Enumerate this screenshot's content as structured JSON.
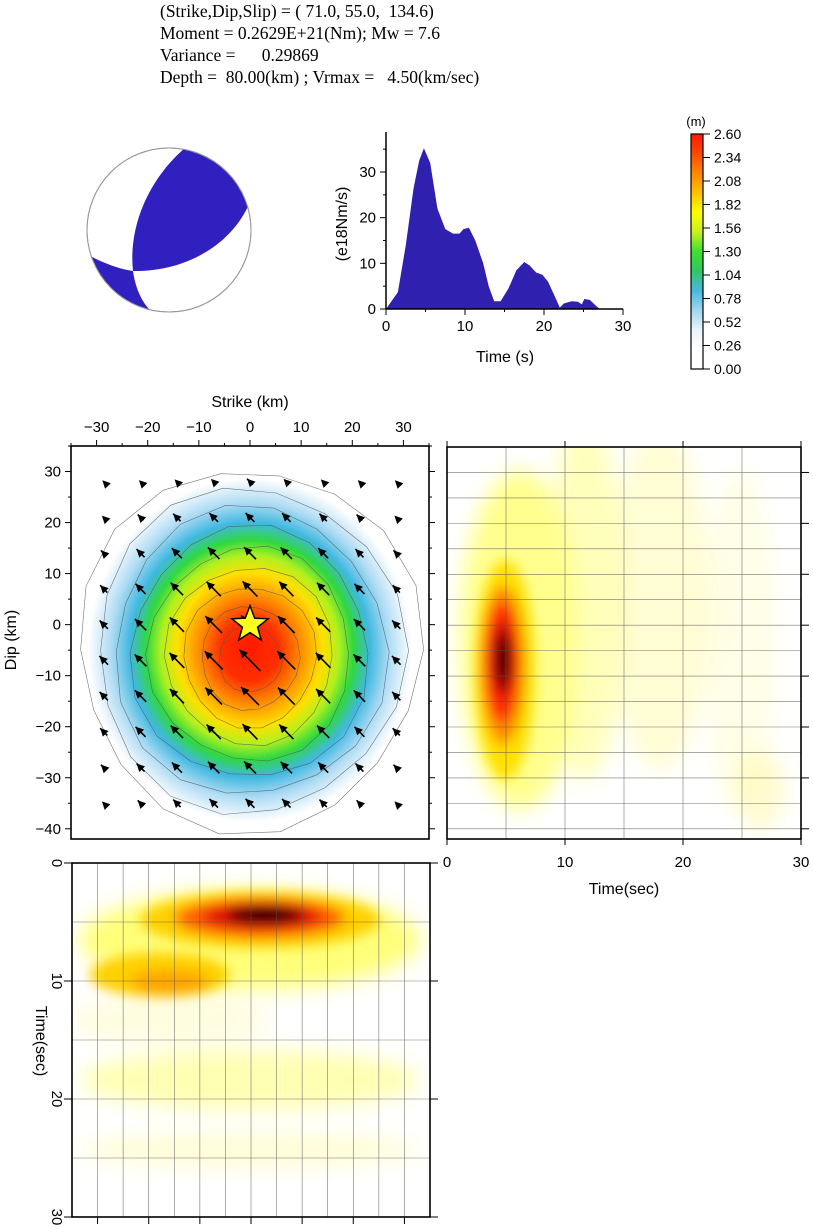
{
  "header": {
    "line1": "(Strike,Dip,Slip) = ( 71.0, 55.0,  134.6)",
    "line2": "Moment = 0.2629E+21(Nm); Mw = 7.6",
    "line3": "Variance =      0.29869",
    "line4": "Depth =  80.00(km) ; Vrmax =   4.50(km/sec)"
  },
  "colors": {
    "beachball_fill": "#3020c0",
    "stf_fill": "#3020b0"
  },
  "chart_data": [
    {
      "id": "focal-mechanism",
      "type": "other",
      "title": "Focal mechanism (beachball)",
      "strike": 71.0,
      "dip": 55.0,
      "slip": 134.6
    },
    {
      "id": "source-time-function",
      "type": "area",
      "xlabel": "Time (s)",
      "ylabel": "(e18Nm/s)",
      "xlim": [
        0,
        30
      ],
      "ylim": [
        0,
        38
      ],
      "xticks": [
        0,
        10,
        20,
        30
      ],
      "yticks": [
        0,
        10,
        20,
        30
      ],
      "x": [
        0,
        1.5,
        2.5,
        3.5,
        4.2,
        4.8,
        5.6,
        6.5,
        7.5,
        8.5,
        9.3,
        9.8,
        10.5,
        11.3,
        12.3,
        13.0,
        13.7,
        14.5,
        15.5,
        16.5,
        17.5,
        18.2,
        19.0,
        19.8,
        20.5,
        21.3,
        22.0,
        22.5,
        23.5,
        24.3,
        24.8,
        25.1,
        25.8,
        26.5,
        27.0,
        30
      ],
      "values": [
        0,
        3.7,
        14,
        26.5,
        32.5,
        35.2,
        32,
        22,
        17.5,
        16.5,
        16.5,
        17.5,
        17.8,
        15,
        10,
        5,
        1.7,
        1.7,
        4.5,
        8.5,
        10.3,
        9.5,
        8,
        7.5,
        6,
        3,
        0.3,
        1.2,
        1.7,
        1.6,
        1,
        2.2,
        2.0,
        0.8,
        0.1,
        0
      ]
    },
    {
      "id": "slip-colorbar",
      "type": "colorbar",
      "unit": "(m)",
      "ticks": [
        "0.00",
        "0.26",
        "0.52",
        "0.78",
        "1.04",
        "1.30",
        "1.56",
        "1.82",
        "2.08",
        "2.34",
        "2.60"
      ],
      "range": [
        0,
        2.6
      ],
      "colormap": [
        "#ffffff",
        "#ffffff",
        "#e8f4fc",
        "#9fd6ee",
        "#48b8e0",
        "#2ec860",
        "#3ee030",
        "#c8f020",
        "#ffff00",
        "#ffc000",
        "#ff8800",
        "#ff4800",
        "#ff1a00"
      ]
    },
    {
      "id": "slip-distribution",
      "type": "heatmap",
      "title": "",
      "xlabel": "Strike (km)",
      "ylabel": "Dip (km)",
      "xlim": [
        -35,
        35
      ],
      "ylim": [
        -42,
        35
      ],
      "xticks": [
        -30,
        -20,
        -10,
        0,
        10,
        20,
        30
      ],
      "yticks": [
        -40,
        -30,
        -20,
        -10,
        0,
        10,
        20,
        30
      ],
      "peak_slip_m": 2.6,
      "peak_location_km": [
        0,
        -7
      ],
      "hypocenter_km": [
        0,
        0
      ],
      "contour_interval_m": 0.26,
      "rake_arrows": {
        "strike_positions_km": [
          -28.6,
          -21.4,
          -14.3,
          -7.1,
          0,
          7.1,
          14.3,
          21.4,
          28.6
        ],
        "dip_positions_km": [
          28,
          21,
          14,
          7,
          0,
          -7,
          -14,
          -21,
          -28,
          -35
        ],
        "rake_deg": 134.6
      }
    },
    {
      "id": "dip-time-slip-rate",
      "type": "heatmap",
      "xlabel": "Time(sec)",
      "ylabel": "",
      "xlim": [
        0,
        30
      ],
      "ylim": [
        -42,
        35
      ],
      "xticks": [
        0,
        10,
        20,
        30
      ],
      "peak_time_s": 4.8,
      "peak_dip_km": -7
    },
    {
      "id": "strike-time-slip-rate",
      "type": "heatmap",
      "xlabel": "",
      "ylabel": "Time(sec)",
      "xlim": [
        -35,
        35
      ],
      "ylim": [
        30,
        0
      ],
      "yticks": [
        0,
        10,
        20,
        30
      ],
      "peak_time_s": 4.5,
      "peak_strike_km": 1
    }
  ]
}
